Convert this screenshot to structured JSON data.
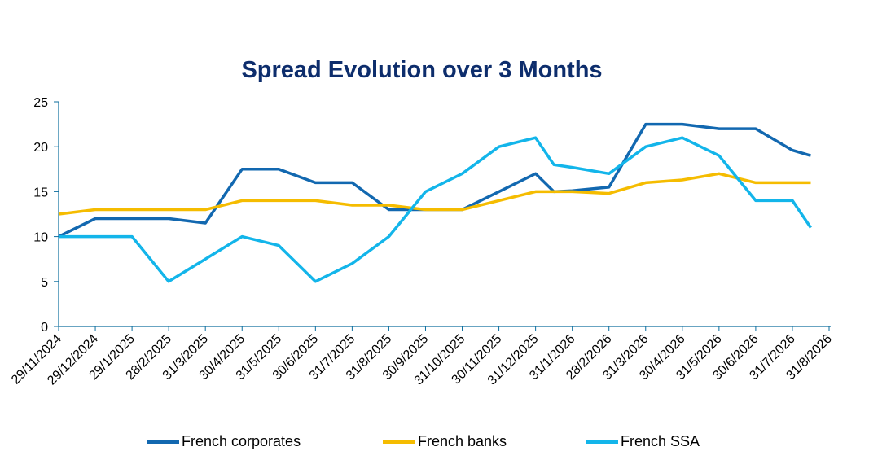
{
  "chart_data": {
    "type": "line",
    "title": "Spread Evolution over 3 Months",
    "x": [
      "29/11/2024",
      "29/12/2024",
      "29/1/2025",
      "28/2/2025",
      "31/3/2025",
      "30/4/2025",
      "31/5/2025",
      "30/6/2025",
      "31/7/2025",
      "31/8/2025",
      "30/9/2025",
      "31/10/2025",
      "30/11/2025",
      "31/12/2025",
      "31/1/2026",
      "28/2/2026",
      "31/3/2026",
      "30/4/2026",
      "31/5/2026",
      "30/6/2026",
      "31/7/2026",
      "31/8/2026"
    ],
    "yticks": [
      "0",
      "5",
      "10",
      "15",
      "20",
      "25"
    ],
    "ylim": [
      0,
      25
    ],
    "grid": false,
    "legend_position": "bottom",
    "series": [
      {
        "name": "French corporates",
        "color": "#1268B0",
        "values": [
          [
            0,
            10
          ],
          [
            1,
            12
          ],
          [
            2,
            12
          ],
          [
            3,
            12
          ],
          [
            4,
            11.5
          ],
          [
            5,
            17.5
          ],
          [
            6,
            17.5
          ],
          [
            7,
            16
          ],
          [
            8,
            16
          ],
          [
            9,
            13
          ],
          [
            10,
            13
          ],
          [
            11,
            13
          ],
          [
            12,
            15
          ],
          [
            13,
            17
          ],
          [
            13.5,
            15
          ],
          [
            14,
            15.1
          ],
          [
            15,
            15.5
          ],
          [
            16,
            22.5
          ],
          [
            17,
            22.5
          ],
          [
            18,
            22
          ],
          [
            19,
            22
          ],
          [
            20,
            19.6
          ],
          [
            20.5,
            19
          ]
        ]
      },
      {
        "name": "French banks",
        "color": "#F5BC00",
        "values": [
          [
            0,
            12.5
          ],
          [
            1,
            13
          ],
          [
            2,
            13
          ],
          [
            3,
            13
          ],
          [
            4,
            13
          ],
          [
            5,
            14
          ],
          [
            6,
            14
          ],
          [
            7,
            14
          ],
          [
            8,
            13.5
          ],
          [
            9,
            13.5
          ],
          [
            10,
            13
          ],
          [
            11,
            13
          ],
          [
            12,
            14
          ],
          [
            13,
            15
          ],
          [
            14,
            15
          ],
          [
            15,
            14.8
          ],
          [
            16,
            16
          ],
          [
            17,
            16.3
          ],
          [
            18,
            17
          ],
          [
            19,
            16
          ],
          [
            20,
            16
          ],
          [
            20.5,
            16
          ]
        ]
      },
      {
        "name": "French SSA",
        "color": "#13B5EA",
        "values": [
          [
            0,
            10
          ],
          [
            1,
            10
          ],
          [
            2,
            10
          ],
          [
            3,
            5
          ],
          [
            4,
            7.5
          ],
          [
            5,
            10
          ],
          [
            6,
            9
          ],
          [
            7,
            5
          ],
          [
            8,
            7
          ],
          [
            9,
            10
          ],
          [
            10,
            15
          ],
          [
            11,
            17
          ],
          [
            12,
            20
          ],
          [
            13,
            21
          ],
          [
            13.5,
            18
          ],
          [
            14,
            17.7
          ],
          [
            15,
            17
          ],
          [
            16,
            20
          ],
          [
            17,
            21
          ],
          [
            18,
            19
          ],
          [
            19,
            14
          ],
          [
            20,
            14
          ],
          [
            20.5,
            11
          ]
        ]
      }
    ]
  }
}
